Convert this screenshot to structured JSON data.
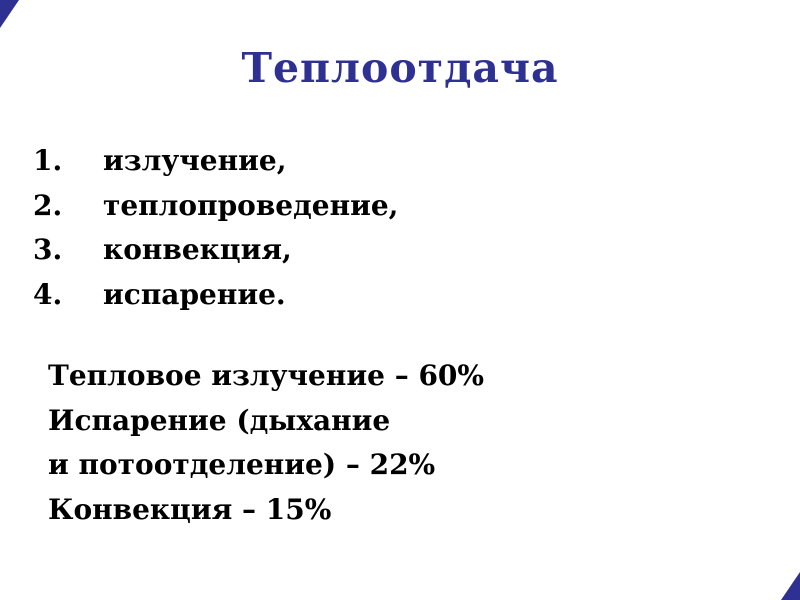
{
  "slide": {
    "title": "Теплоотдача",
    "accent_color": "#2e3191",
    "text_color": "#000000",
    "background_color": "#ffffff"
  },
  "list": {
    "items": [
      {
        "number": "1.",
        "label": "излучение,"
      },
      {
        "number": "2.",
        "label": "теплопроведение,"
      },
      {
        "number": "3.",
        "label": "конвекция,"
      },
      {
        "number": "4.",
        "label": "испарение."
      }
    ]
  },
  "stats": {
    "lines": [
      "Тепловое излучение – 60%",
      "Испарение (дыхание",
      "и потоотделение) – 22%",
      "Конвекция – 15%"
    ]
  }
}
